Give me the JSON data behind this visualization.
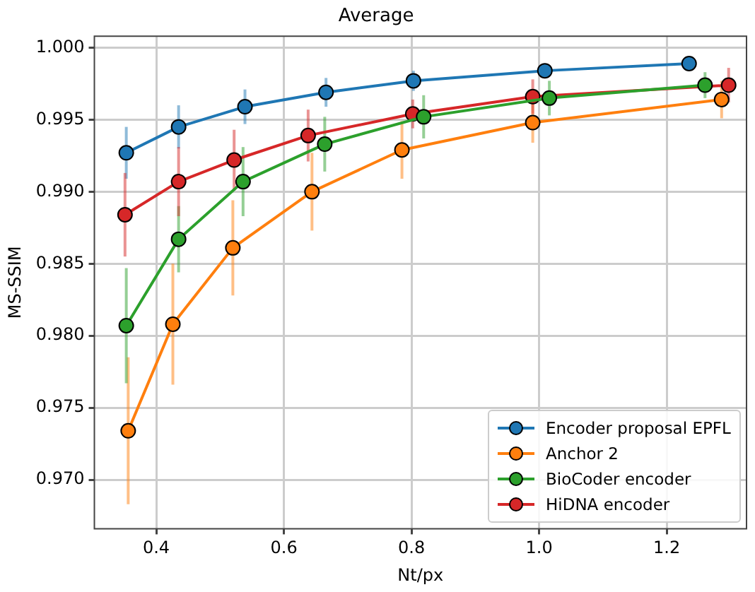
{
  "chart_data": {
    "type": "line",
    "title": "Average",
    "xlabel": "Nt/px",
    "ylabel": "MS-SSIM",
    "xlim": [
      0.303,
      1.325
    ],
    "xticks": [
      0.4,
      0.6,
      0.8,
      {
        "value": 1,
        "label": "1.0"
      },
      1.2
    ],
    "ylim": [
      0.9666,
      1.0008
    ],
    "yticks": [
      {
        "value": 0.97,
        "label": "0.970"
      },
      {
        "value": 0.975,
        "label": "0.975"
      },
      {
        "value": 0.98,
        "label": "0.980"
      },
      {
        "value": 0.985,
        "label": "0.985"
      },
      {
        "value": 0.99,
        "label": "0.990"
      },
      {
        "value": 0.995,
        "label": "0.995"
      },
      {
        "value": 1,
        "label": "1.000"
      }
    ],
    "grid": true,
    "legend": "bottom right",
    "marker": "circle",
    "line_style": "solid",
    "series": [
      {
        "name": "Encoder proposal EPFL",
        "color": "#1f77b4",
        "x": [
          0.353,
          0.435,
          0.539,
          0.666,
          0.803,
          1.009,
          1.235
        ],
        "values": [
          0.9927,
          0.9945,
          0.9959,
          0.9969,
          0.9977,
          0.9984,
          0.9989
        ],
        "errors": [
          0.0018,
          0.0015,
          0.0012,
          0.001,
          0.0007,
          0.0005,
          null
        ]
      },
      {
        "name": "Anchor 2",
        "color": "#ff7f0e",
        "x": [
          0.356,
          0.426,
          0.52,
          0.644,
          0.785,
          0.99,
          1.286
        ],
        "values": [
          0.9734,
          0.9808,
          0.9861,
          0.99,
          0.9929,
          0.9948,
          0.9964
        ],
        "errors": [
          0.0051,
          0.0042,
          0.0033,
          0.0027,
          0.002,
          0.0014,
          0.0013
        ]
      },
      {
        "name": "BioCoder encoder",
        "color": "#2ca02c",
        "x": [
          0.353,
          0.435,
          0.536,
          0.664,
          0.819,
          1.016,
          1.26
        ],
        "values": [
          0.9807,
          0.9867,
          0.9907,
          0.9933,
          0.9952,
          0.9965,
          0.9974
        ],
        "errors": [
          0.004,
          0.0023,
          0.0024,
          0.0019,
          0.0015,
          0.0012,
          0.0009
        ]
      },
      {
        "name": "HiDNA encoder",
        "color": "#d62728",
        "x": [
          0.351,
          0.435,
          0.522,
          0.638,
          0.802,
          0.99,
          1.297
        ],
        "values": [
          0.9884,
          0.9907,
          0.9922,
          0.9939,
          0.9954,
          0.9966,
          0.9974
        ],
        "errors": [
          0.0029,
          0.0024,
          0.0021,
          0.0018,
          0.001,
          0.0012,
          0.0012
        ]
      }
    ]
  }
}
